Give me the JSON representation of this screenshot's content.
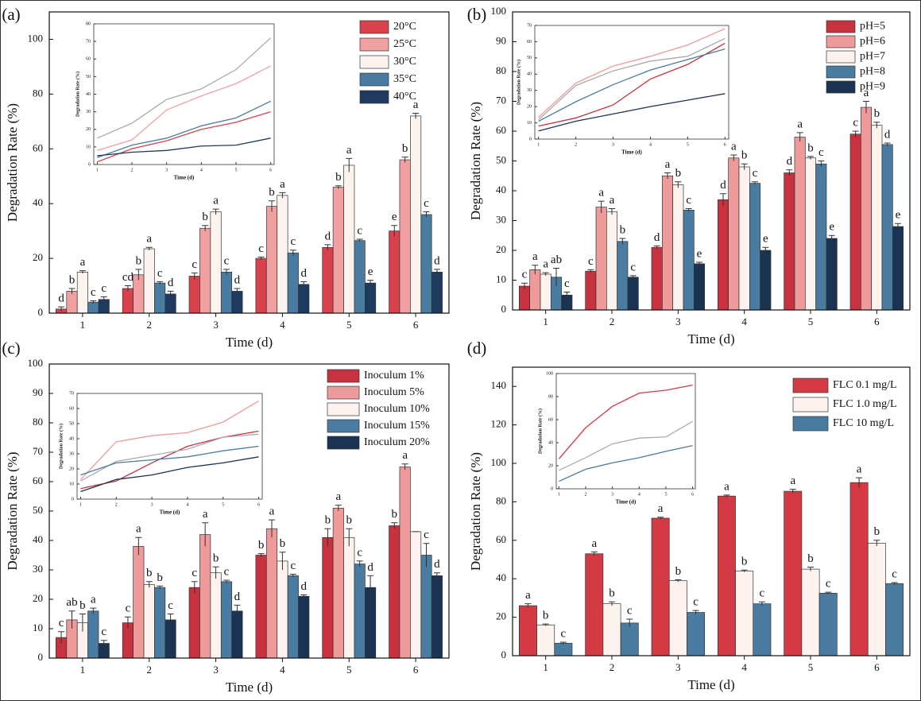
{
  "chart_data": [
    {
      "type": "bar",
      "panel": "(a)",
      "x_label": "Time (d)",
      "y_label": "Degradation Rate (%)",
      "categories": [
        "1",
        "2",
        "3",
        "4",
        "5",
        "6"
      ],
      "ylim": [
        0,
        110
      ],
      "yticks": [
        0,
        20,
        40,
        60,
        80,
        100
      ],
      "series": [
        {
          "name": "20°C",
          "color": "#d9414b",
          "values": [
            1.5,
            9,
            13.5,
            20,
            24,
            30
          ],
          "errors": [
            0.8,
            1,
            1.2,
            0.5,
            1,
            2
          ],
          "letters": [
            "d",
            "cd",
            "c",
            "c",
            "d",
            "e"
          ]
        },
        {
          "name": "25°C",
          "color": "#f0a0a0",
          "values": [
            8,
            14,
            31,
            39,
            46,
            56
          ],
          "errors": [
            1,
            2,
            1,
            2,
            0.5,
            1
          ],
          "letters": [
            "b",
            "b",
            "b",
            "b",
            "b",
            "b"
          ]
        },
        {
          "name": "30°C",
          "color": "#fdf3ee",
          "values": [
            15,
            23.5,
            37,
            43,
            54,
            72
          ],
          "errors": [
            0.5,
            0.5,
            1,
            1,
            2.5,
            1
          ],
          "letters": [
            "a",
            "a",
            "a",
            "a",
            "a",
            "a"
          ]
        },
        {
          "name": "35°C",
          "color": "#4a7ba0",
          "values": [
            4,
            11,
            15,
            22,
            26.5,
            36
          ],
          "errors": [
            0.5,
            0.5,
            1,
            1,
            0.5,
            1
          ],
          "letters": [
            "c",
            "c",
            "c",
            "c",
            "c",
            "c"
          ]
        },
        {
          "name": "40°C",
          "color": "#1e3a5f",
          "values": [
            5,
            7,
            8,
            10.5,
            11,
            15
          ],
          "errors": [
            1,
            1,
            1,
            1,
            1,
            1
          ],
          "letters": [
            "c",
            "d",
            "d",
            "d",
            "e",
            "d"
          ]
        }
      ],
      "inset": {
        "type": "line",
        "x_label": "Time (d)",
        "y_label": "Degradation Rate (%)",
        "x": [
          1,
          2,
          3,
          4,
          5,
          6
        ],
        "xlim": [
          0.9,
          6.1
        ],
        "xticks": [
          1,
          2,
          3,
          4,
          5,
          6
        ],
        "ylim": [
          0,
          80
        ],
        "yticks": [
          0,
          10,
          20,
          30,
          40,
          50,
          60,
          70,
          80
        ]
      }
    },
    {
      "type": "bar",
      "panel": "(b)",
      "x_label": "Time (d)",
      "y_label": "Degradation Rate (%)",
      "categories": [
        "1",
        "2",
        "3",
        "4",
        "5",
        "6"
      ],
      "ylim": [
        0,
        100
      ],
      "yticks": [
        0,
        10,
        20,
        30,
        40,
        50,
        60,
        70,
        80,
        90,
        100
      ],
      "series": [
        {
          "name": "pH=5",
          "color": "#c8323f",
          "values": [
            8,
            13,
            21,
            37,
            46,
            59
          ],
          "errors": [
            1,
            0.5,
            0.5,
            2,
            1,
            1
          ],
          "letters": [
            "c",
            "c",
            "d",
            "d",
            "d",
            "c"
          ]
        },
        {
          "name": "pH=6",
          "color": "#ef9a9a",
          "values": [
            13.5,
            34.5,
            45,
            51,
            58,
            68
          ],
          "errors": [
            1.5,
            2,
            1,
            1,
            1.5,
            2
          ],
          "letters": [
            "a",
            "a",
            "a",
            "a",
            "a",
            "a"
          ]
        },
        {
          "name": "pH=7",
          "color": "#fdf2ee",
          "values": [
            12,
            33,
            42,
            48,
            51,
            62
          ],
          "errors": [
            0.5,
            1,
            1,
            1,
            0.5,
            1
          ],
          "letters": [
            "a",
            "a",
            "b",
            "b",
            "b",
            "b"
          ]
        },
        {
          "name": "pH=8",
          "color": "#4a7ba0",
          "values": [
            11,
            23,
            33.5,
            42.5,
            49,
            55.5
          ],
          "errors": [
            3,
            1,
            0.5,
            0.5,
            1,
            0.5
          ],
          "letters": [
            "ab",
            "b",
            "c",
            "c",
            "c",
            "d"
          ]
        },
        {
          "name": "pH=9",
          "color": "#1b3352",
          "values": [
            5,
            11,
            15.5,
            20,
            24,
            28
          ],
          "errors": [
            1,
            0.5,
            0.5,
            1,
            1,
            1
          ],
          "letters": [
            "c",
            "c",
            "e",
            "e",
            "e",
            "e"
          ]
        }
      ],
      "inset": {
        "type": "line",
        "x_label": "Time (d)",
        "y_label": "Degradation Rate (%)",
        "x": [
          1,
          2,
          3,
          4,
          5,
          6
        ],
        "xlim": [
          0.9,
          6.1
        ],
        "xticks": [
          1,
          2,
          3,
          4,
          5,
          6
        ],
        "ylim": [
          0,
          70
        ],
        "yticks": [
          0,
          10,
          20,
          30,
          40,
          50,
          60,
          70
        ]
      }
    },
    {
      "type": "bar",
      "panel": "(c)",
      "x_label": "Time (d)",
      "y_label": "Degradation Rate (%)",
      "categories": [
        "1",
        "2",
        "3",
        "4",
        "5",
        "6"
      ],
      "ylim": [
        0,
        100
      ],
      "yticks": [
        0,
        10,
        20,
        30,
        40,
        50,
        60,
        70,
        80,
        90,
        100
      ],
      "series": [
        {
          "name": "Inoculum 1%",
          "color": "#c8323f",
          "values": [
            7,
            12,
            24,
            35,
            41,
            45
          ],
          "errors": [
            2,
            2,
            2,
            0.5,
            3,
            1
          ],
          "letters": [
            "c",
            "c",
            "c",
            "b",
            "b",
            "b"
          ]
        },
        {
          "name": "Inoculum 5%",
          "color": "#ef9a9a",
          "values": [
            13,
            38,
            42,
            44,
            51,
            65
          ],
          "errors": [
            3,
            3,
            4,
            3,
            1,
            1
          ],
          "letters": [
            "ab",
            "a",
            "a",
            "a",
            "a",
            "a"
          ]
        },
        {
          "name": "Inoculum 10%",
          "color": "#fdf2ee",
          "values": [
            12,
            25,
            29,
            33,
            41,
            43
          ],
          "errors": [
            3,
            1,
            2,
            3,
            3,
            0
          ],
          "letters": [
            "b",
            "b",
            "b",
            "b",
            "b",
            null
          ]
        },
        {
          "name": "Inoculum 15%",
          "color": "#4a7ba0",
          "values": [
            16,
            24,
            26,
            28,
            32,
            35
          ],
          "errors": [
            1,
            0.5,
            0.5,
            0.5,
            1,
            4
          ],
          "letters": [
            "a",
            "b",
            "c",
            "c",
            "c",
            "c"
          ]
        },
        {
          "name": "Inoculum 20%",
          "color": "#1b3352",
          "values": [
            5,
            13,
            16,
            21,
            24,
            28
          ],
          "errors": [
            1,
            2,
            2,
            0.5,
            4,
            1
          ],
          "letters": [
            "c",
            "c",
            "d",
            "d",
            "d",
            "d"
          ]
        }
      ],
      "inset": {
        "type": "line",
        "x_label": "Time (d)",
        "y_label": "Degradation Rate (%)",
        "x": [
          1,
          2,
          3,
          4,
          5,
          6
        ],
        "xlim": [
          0.9,
          6.1
        ],
        "xticks": [
          1,
          2,
          3,
          4,
          5,
          6
        ],
        "ylim": [
          0,
          70
        ],
        "yticks": [
          0,
          10,
          20,
          30,
          40,
          50,
          60,
          70
        ]
      }
    },
    {
      "type": "bar",
      "panel": "(d)",
      "x_label": "Time (d)",
      "y_label": "Degradation Rate (%)",
      "categories": [
        "1",
        "2",
        "3",
        "4",
        "5",
        "6"
      ],
      "ylim": [
        0,
        150
      ],
      "yticks": [
        0,
        20,
        40,
        60,
        80,
        100,
        120,
        140
      ],
      "series": [
        {
          "name": "FLC 0.1 mg/L",
          "color": "#d33a44",
          "values": [
            26,
            53,
            71.5,
            83,
            85.5,
            90
          ],
          "errors": [
            1,
            1,
            0.5,
            0.5,
            1,
            2.5
          ],
          "letters": [
            "a",
            "a",
            "a",
            "a",
            "a",
            "a"
          ]
        },
        {
          "name": "FLC 1.0 mg/L",
          "color": "#fdf3ee",
          "values": [
            16,
            27,
            39,
            44,
            45,
            58.5
          ],
          "errors": [
            0.5,
            1,
            0.5,
            0.5,
            1,
            1.5
          ],
          "letters": [
            "b",
            "b",
            "b",
            "b",
            "b",
            "b"
          ]
        },
        {
          "name": "FLC 10 mg/L",
          "color": "#4a7ba0",
          "values": [
            6.5,
            17,
            22.5,
            27,
            32.5,
            37.5
          ],
          "errors": [
            0.5,
            2,
            1,
            1,
            0.5,
            0.5
          ],
          "letters": [
            "c",
            "c",
            "c",
            "c",
            "c",
            "c"
          ]
        }
      ],
      "inset": {
        "type": "line",
        "x_label": "Time (d)",
        "y_label": "Degradation Rate (%)",
        "x": [
          1,
          2,
          3,
          4,
          5,
          6
        ],
        "xlim": [
          0.9,
          6.1
        ],
        "xticks": [
          1,
          2,
          3,
          4,
          5,
          6
        ],
        "ylim": [
          0,
          100
        ],
        "yticks": [
          0,
          20,
          40,
          60,
          80,
          100
        ]
      }
    }
  ]
}
